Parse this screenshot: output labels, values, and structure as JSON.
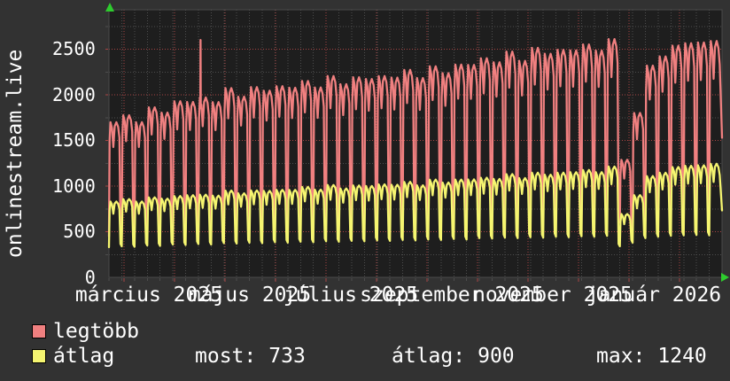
{
  "title": "onlinestream.live",
  "colors": {
    "background": "#323232",
    "plot_background": "#1e1e1e",
    "grid_minor": "#4d4d4d",
    "grid_major": "#a84444",
    "plot_border": "#4a4a4a",
    "axis_arrow": "#2ecc2e",
    "text": "#ffffff"
  },
  "chart_data": {
    "type": "line",
    "title": "onlinestream.live",
    "ylim": [
      0,
      2930
    ],
    "y_ticks": [
      2500,
      2000,
      1500,
      1000,
      500,
      0
    ],
    "y_minor_step": 250,
    "x_tick_labels": [
      "március 2025",
      "május 2025",
      "július 2025",
      "szeptember 2025",
      "november 2025",
      "január 2026"
    ],
    "x_range_note": "weekly sawtooth pattern, one tooth per week, ~48 weeks from late Feb 2025 to late Jan 2026",
    "grid": {
      "minor_vertical": "weekly",
      "major_vertical": "monthly",
      "style": "dotted"
    },
    "legend_position": "bottom-left",
    "series": [
      {
        "name": "legtöbb",
        "color": "#f08080",
        "weekly_peaks": [
          1700,
          1760,
          1720,
          1850,
          1800,
          1950,
          1900,
          1980,
          1930,
          2050,
          2000,
          2080,
          2030,
          2120,
          2060,
          2150,
          2100,
          2180,
          2130,
          2200,
          2150,
          2230,
          2180,
          2260,
          2210,
          2290,
          2240,
          2350,
          2300,
          2420,
          2360,
          2450,
          2400,
          2500,
          2440,
          2520,
          2460,
          2560,
          2500,
          2580,
          1300,
          1800,
          2300,
          2450,
          2520,
          2560,
          2600,
          2560
        ],
        "weekly_lows": [
          450,
          460,
          440,
          480,
          470,
          500,
          490,
          510,
          500,
          530,
          520,
          540,
          530,
          550,
          540,
          560,
          550,
          570,
          560,
          580,
          570,
          590,
          580,
          600,
          590,
          610,
          600,
          620,
          610,
          640,
          630,
          650,
          640,
          660,
          650,
          670,
          660,
          680,
          670,
          690,
          600,
          500,
          620,
          650,
          670,
          680,
          690,
          680
        ],
        "spike": {
          "week": 7,
          "value": 2600
        },
        "end_value": 1530
      },
      {
        "name": "átlag",
        "color": "#f5f570",
        "weekly_peaks": [
          830,
          850,
          840,
          870,
          860,
          900,
          890,
          910,
          900,
          940,
          930,
          950,
          940,
          970,
          950,
          990,
          970,
          1000,
          980,
          1010,
          990,
          1030,
          1010,
          1040,
          1020,
          1060,
          1040,
          1080,
          1060,
          1100,
          1080,
          1120,
          1100,
          1140,
          1120,
          1160,
          1140,
          1180,
          1160,
          1200,
          700,
          900,
          1100,
          1160,
          1200,
          1220,
          1240,
          1230
        ],
        "weekly_lows": [
          330,
          340,
          335,
          350,
          345,
          360,
          355,
          365,
          360,
          375,
          370,
          380,
          375,
          385,
          380,
          390,
          385,
          395,
          390,
          400,
          395,
          405,
          400,
          410,
          405,
          415,
          410,
          420,
          415,
          430,
          425,
          435,
          430,
          440,
          435,
          445,
          440,
          450,
          445,
          455,
          340,
          380,
          430,
          445,
          455,
          460,
          465,
          460
        ],
        "end_value": 733
      }
    ],
    "stats": {
      "most": 733,
      "átlag": 900,
      "max": 1240
    }
  },
  "legend": [
    {
      "label": "legtöbb",
      "color": "#f08080"
    },
    {
      "label": "átlag",
      "color": "#f5f570"
    }
  ],
  "stats": [
    {
      "label": "most:",
      "value": "733"
    },
    {
      "label": "átlag:",
      "value": "900"
    },
    {
      "label": "max:",
      "value": "1240"
    }
  ]
}
